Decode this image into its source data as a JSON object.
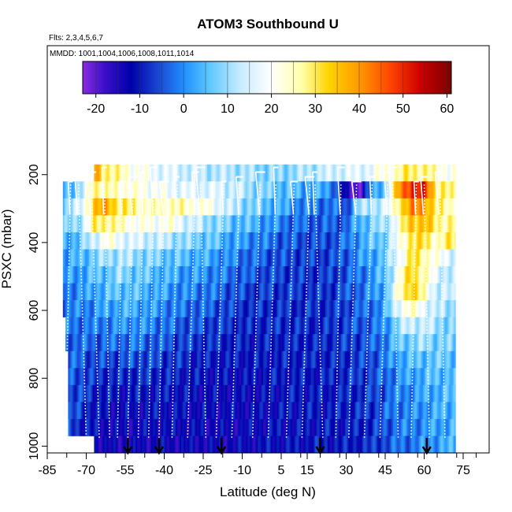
{
  "chart_data": {
    "type": "heatmap",
    "title": "ATOM3 Southbound U",
    "subtitle_flights": "Flts: 2,3,4,5,6,7",
    "subtitle_dates": "MMDD: 1001,1004,1006,1008,1011,1014",
    "xlabel": "Latitude (deg N)",
    "ylabel": "PSXC (mbar)",
    "xlim": [
      -85,
      85
    ],
    "ylim": [
      1020,
      -180
    ],
    "x_ticks": [
      -85,
      -70,
      -55,
      -40,
      -25,
      -10,
      5,
      15,
      30,
      45,
      60,
      75
    ],
    "y_ticks": [
      200,
      400,
      600,
      800,
      1000
    ],
    "colorbar": {
      "min": -23,
      "max": 61,
      "ticks": [
        -20,
        -10,
        0,
        10,
        20,
        30,
        40,
        50,
        60
      ],
      "color_stops": [
        {
          "value": -23,
          "color": "#8a2be2"
        },
        {
          "value": -18,
          "color": "#3a10c8"
        },
        {
          "value": -12,
          "color": "#0000aa"
        },
        {
          "value": -6,
          "color": "#1a44d0"
        },
        {
          "value": 0,
          "color": "#1f8fff"
        },
        {
          "value": 6,
          "color": "#5ec8ff"
        },
        {
          "value": 13,
          "color": "#c8ecff"
        },
        {
          "value": 20,
          "color": "#ffffff"
        },
        {
          "value": 27,
          "color": "#ffffa8"
        },
        {
          "value": 33,
          "color": "#ffd400"
        },
        {
          "value": 40,
          "color": "#ff9a00"
        },
        {
          "value": 47,
          "color": "#ff4500"
        },
        {
          "value": 54,
          "color": "#cc0000"
        },
        {
          "value": 61,
          "color": "#7a0000"
        }
      ]
    },
    "pressure_levels": [
      {
        "p_top": 170,
        "p_bot": 220,
        "lat_start": -67,
        "lat_end": 72
      },
      {
        "p_top": 220,
        "p_bot": 270,
        "lat_start": -79,
        "lat_end": 72
      },
      {
        "p_top": 270,
        "p_bot": 320,
        "lat_start": -79,
        "lat_end": 72
      },
      {
        "p_top": 320,
        "p_bot": 370,
        "lat_start": -79,
        "lat_end": 72
      },
      {
        "p_top": 370,
        "p_bot": 420,
        "lat_start": -79,
        "lat_end": 72
      },
      {
        "p_top": 420,
        "p_bot": 470,
        "lat_start": -79,
        "lat_end": 72
      },
      {
        "p_top": 470,
        "p_bot": 520,
        "lat_start": -79,
        "lat_end": 72
      },
      {
        "p_top": 520,
        "p_bot": 570,
        "lat_start": -79,
        "lat_end": 72
      },
      {
        "p_top": 570,
        "p_bot": 620,
        "lat_start": -79,
        "lat_end": 72
      },
      {
        "p_top": 620,
        "p_bot": 670,
        "lat_start": -78,
        "lat_end": 72
      },
      {
        "p_top": 670,
        "p_bot": 720,
        "lat_start": -78,
        "lat_end": 72
      },
      {
        "p_top": 720,
        "p_bot": 770,
        "lat_start": -77,
        "lat_end": 72
      },
      {
        "p_top": 770,
        "p_bot": 820,
        "lat_start": -77,
        "lat_end": 72
      },
      {
        "p_top": 820,
        "p_bot": 870,
        "lat_start": -77,
        "lat_end": 72
      },
      {
        "p_top": 870,
        "p_bot": 920,
        "lat_start": -77,
        "lat_end": 72
      },
      {
        "p_top": 920,
        "p_bot": 970,
        "lat_start": -77,
        "lat_end": 72
      },
      {
        "p_top": 970,
        "p_bot": 1020,
        "lat_start": -67,
        "lat_end": 72
      }
    ],
    "u_profile_by_latitude": [
      {
        "lat": -80,
        "u": [
          null,
          3,
          6,
          4,
          2,
          1,
          0,
          -1,
          -2,
          -2,
          -3,
          -3,
          -4,
          -5,
          -5,
          -5,
          null
        ]
      },
      {
        "lat": -72,
        "u": [
          null,
          10,
          15,
          12,
          6,
          4,
          2,
          0,
          -1,
          -2,
          -3,
          -4,
          -5,
          -6,
          -7,
          -8,
          -9
        ]
      },
      {
        "lat": -67,
        "u": [
          38,
          30,
          35,
          28,
          15,
          8,
          5,
          3,
          0,
          -2,
          -4,
          -6,
          -8,
          -9,
          -10,
          -11,
          -12
        ]
      },
      {
        "lat": -62,
        "u": [
          30,
          25,
          38,
          30,
          22,
          10,
          6,
          4,
          2,
          -1,
          -3,
          -6,
          -8,
          -10,
          -12,
          -13,
          -14
        ]
      },
      {
        "lat": -57,
        "u": [
          25,
          24,
          30,
          24,
          18,
          12,
          9,
          6,
          3,
          0,
          -3,
          -6,
          -9,
          -11,
          -12,
          -13,
          -14
        ]
      },
      {
        "lat": -52,
        "u": [
          22,
          22,
          28,
          22,
          15,
          10,
          7,
          5,
          3,
          1,
          -2,
          -5,
          -8,
          -10,
          -12,
          -13,
          -14
        ]
      },
      {
        "lat": -45,
        "u": [
          18,
          20,
          24,
          20,
          14,
          8,
          5,
          3,
          1,
          -1,
          -4,
          -6,
          -8,
          -10,
          -11,
          -12,
          -13
        ]
      },
      {
        "lat": -38,
        "u": [
          16,
          18,
          26,
          22,
          12,
          6,
          3,
          1,
          -1,
          -3,
          -5,
          -7,
          -9,
          -10,
          -11,
          -12,
          -13
        ]
      },
      {
        "lat": -30,
        "u": [
          14,
          16,
          24,
          14,
          8,
          4,
          1,
          -1,
          -3,
          -5,
          -7,
          -9,
          -10,
          -11,
          -12,
          -12,
          -13
        ]
      },
      {
        "lat": -22,
        "u": [
          12,
          16,
          20,
          10,
          6,
          2,
          0,
          -2,
          -4,
          -6,
          -8,
          -10,
          -11,
          -12,
          -12,
          -13,
          -13
        ]
      },
      {
        "lat": -14,
        "u": [
          12,
          14,
          12,
          6,
          2,
          -1,
          -3,
          -5,
          -7,
          -8,
          -9,
          -10,
          -11,
          -12,
          -12,
          -13,
          -13
        ]
      },
      {
        "lat": -6,
        "u": [
          10,
          10,
          8,
          4,
          0,
          -3,
          -5,
          -7,
          -8,
          -9,
          -10,
          -10,
          -11,
          -12,
          -12,
          -12,
          -12
        ]
      },
      {
        "lat": 2,
        "u": [
          8,
          6,
          4,
          0,
          -3,
          -5,
          -6,
          -7,
          -8,
          -8,
          -9,
          -10,
          -10,
          -11,
          -11,
          -11,
          -11
        ]
      },
      {
        "lat": 10,
        "u": [
          10,
          4,
          0,
          -3,
          -5,
          -6,
          -7,
          -7,
          -8,
          -8,
          -9,
          -9,
          -10,
          -10,
          -10,
          -11,
          -11
        ]
      },
      {
        "lat": 18,
        "u": [
          12,
          2,
          -2,
          -4,
          -6,
          -7,
          -8,
          -8,
          -8,
          -9,
          -9,
          -9,
          -10,
          -10,
          -10,
          -10,
          -10
        ]
      },
      {
        "lat": 24,
        "u": [
          14,
          2,
          -2,
          -4,
          -5,
          -6,
          -7,
          -7,
          -8,
          -8,
          -8,
          -9,
          -9,
          -10,
          -10,
          -10,
          -10
        ]
      },
      {
        "lat": 30,
        "u": [
          16,
          -16,
          -6,
          -4,
          -3,
          -4,
          -5,
          -5,
          -6,
          -6,
          -7,
          -8,
          -8,
          -9,
          -9,
          -10,
          -10
        ]
      },
      {
        "lat": 35,
        "u": [
          16,
          -20,
          10,
          4,
          2,
          0,
          -2,
          -3,
          -4,
          -5,
          -6,
          -7,
          -7,
          -8,
          -8,
          -9,
          -9
        ]
      },
      {
        "lat": 40,
        "u": [
          18,
          0,
          12,
          8,
          5,
          3,
          1,
          0,
          -2,
          -3,
          -4,
          -5,
          -6,
          -7,
          -7,
          -8,
          -8
        ]
      },
      {
        "lat": 45,
        "u": [
          22,
          8,
          14,
          10,
          8,
          6,
          5,
          4,
          2,
          0,
          -1,
          -2,
          -3,
          -4,
          -4,
          -5,
          -5
        ]
      },
      {
        "lat": 50,
        "u": [
          26,
          38,
          30,
          22,
          18,
          18,
          20,
          22,
          18,
          10,
          6,
          3,
          0,
          -1,
          -1,
          -2,
          -3
        ]
      },
      {
        "lat": 55,
        "u": [
          30,
          52,
          40,
          35,
          32,
          30,
          34,
          36,
          24,
          14,
          8,
          4,
          2,
          0,
          -1,
          -1,
          -2
        ]
      },
      {
        "lat": 60,
        "u": [
          28,
          50,
          42,
          36,
          30,
          28,
          26,
          24,
          18,
          14,
          10,
          6,
          4,
          2,
          1,
          0,
          0
        ]
      },
      {
        "lat": 65,
        "u": [
          24,
          30,
          28,
          28,
          25,
          20,
          16,
          14,
          12,
          10,
          8,
          6,
          5,
          4,
          3,
          2,
          2
        ]
      },
      {
        "lat": 71,
        "u": [
          20,
          26,
          25,
          28,
          30,
          16,
          12,
          12,
          10,
          8,
          7,
          6,
          5,
          4,
          4,
          3,
          3
        ]
      }
    ],
    "profile_tracks": [
      {
        "lat_bottom": -78,
        "lat_top": -76
      },
      {
        "lat_bottom": -70,
        "lat_top": -73
      },
      {
        "lat_bottom": -65,
        "lat_top": -68
      },
      {
        "lat_bottom": -61,
        "lat_top": -63
      },
      {
        "lat_bottom": -58,
        "lat_top": -56
      },
      {
        "lat_bottom": -54,
        "lat_top": -52
      },
      {
        "lat_bottom": -50,
        "lat_top": -48
      },
      {
        "lat_bottom": -46,
        "lat_top": -44
      },
      {
        "lat_bottom": -42,
        "lat_top": -40
      },
      {
        "lat_bottom": -37,
        "lat_top": -35
      },
      {
        "lat_bottom": -31,
        "lat_top": -28
      },
      {
        "lat_bottom": -24,
        "lat_top": -26
      },
      {
        "lat_bottom": -20,
        "lat_top": -17
      },
      {
        "lat_bottom": -14,
        "lat_top": -11
      },
      {
        "lat_bottom": -6,
        "lat_top": -3
      },
      {
        "lat_bottom": 0,
        "lat_top": 3
      },
      {
        "lat_bottom": 7,
        "lat_top": 10
      },
      {
        "lat_bottom": 13,
        "lat_top": 16
      },
      {
        "lat_bottom": 21,
        "lat_top": 18
      },
      {
        "lat_bottom": 26,
        "lat_top": 28
      },
      {
        "lat_bottom": 31,
        "lat_top": 34
      },
      {
        "lat_bottom": 37,
        "lat_top": 40
      },
      {
        "lat_bottom": 43,
        "lat_top": 46
      },
      {
        "lat_bottom": 50,
        "lat_top": 48
      },
      {
        "lat_bottom": 55,
        "lat_top": 57
      },
      {
        "lat_bottom": 62,
        "lat_top": 60
      },
      {
        "lat_bottom": 68,
        "lat_top": 66
      }
    ],
    "flight_markers_lat": [
      -54,
      -42,
      -18,
      20,
      61
    ]
  }
}
